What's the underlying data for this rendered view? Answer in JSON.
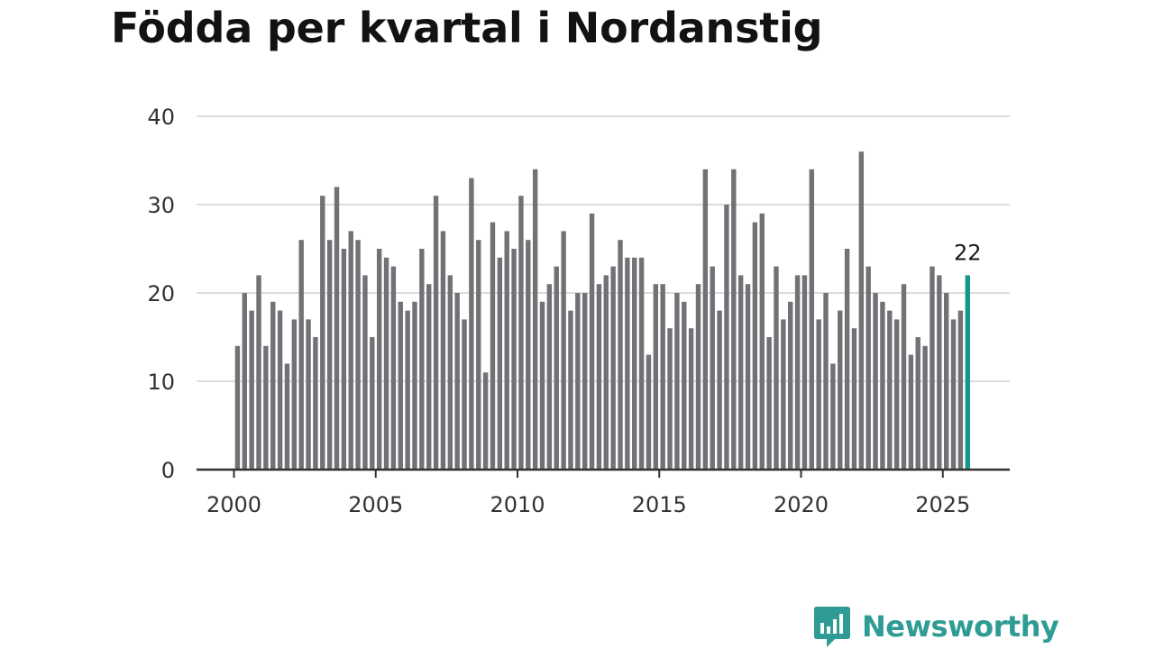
{
  "title": "Födda per kvartal i Nordanstig",
  "brand": {
    "name": "Newsworthy",
    "color": "#2e9c95"
  },
  "colors": {
    "bar": "#727176",
    "highlight": "#14968c",
    "grid": "#dcdcdc",
    "axis": "#333333"
  },
  "chart_data": {
    "type": "bar",
    "title": "Födda per kvartal i Nordanstig",
    "xlabel": "",
    "ylabel": "",
    "ylim": [
      0,
      40
    ],
    "yticks": [
      0,
      10,
      20,
      30,
      40
    ],
    "xticks": [
      2000,
      2005,
      2010,
      2015,
      2020,
      2025
    ],
    "grid": true,
    "start": {
      "year": 2000,
      "quarter": 1
    },
    "values": [
      14,
      20,
      18,
      22,
      14,
      19,
      18,
      12,
      17,
      26,
      17,
      15,
      31,
      26,
      32,
      25,
      27,
      26,
      22,
      15,
      25,
      24,
      23,
      19,
      18,
      19,
      25,
      21,
      31,
      27,
      22,
      20,
      17,
      33,
      26,
      11,
      28,
      24,
      27,
      25,
      31,
      26,
      34,
      19,
      21,
      23,
      27,
      18,
      20,
      20,
      29,
      21,
      22,
      23,
      26,
      24,
      24,
      24,
      13,
      21,
      21,
      16,
      20,
      19,
      16,
      21,
      34,
      23,
      18,
      30,
      34,
      22,
      21,
      28,
      29,
      15,
      23,
      17,
      19,
      22,
      22,
      34,
      17,
      20,
      12,
      18,
      25,
      16,
      36,
      23,
      20,
      19,
      18,
      17,
      21,
      13,
      15,
      14,
      23,
      22,
      20,
      17,
      18,
      22
    ],
    "highlight_last": true,
    "highlight_label": "22"
  }
}
